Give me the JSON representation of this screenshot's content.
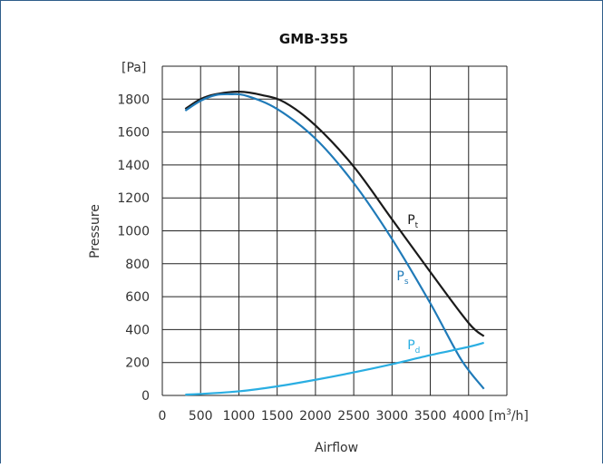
{
  "chart_data": {
    "type": "line",
    "title": "GMB-355",
    "xlabel": "Airflow",
    "ylabel": "Pressure",
    "x_unit_base": "[m",
    "x_unit_sup": "3",
    "x_unit_end": "/h]",
    "y_unit": "[Pa]",
    "xlim": [
      0,
      4500
    ],
    "ylim": [
      0,
      2000
    ],
    "x_ticks": [
      0,
      500,
      1000,
      1500,
      2000,
      2500,
      3000,
      3500,
      4000
    ],
    "x_tick_labels": [
      "0",
      "500",
      "1000",
      "1500",
      "2000",
      "2500",
      "3000",
      "3500",
      "4000"
    ],
    "y_ticks": [
      0,
      200,
      400,
      600,
      800,
      1000,
      1200,
      1400,
      1600,
      1800
    ],
    "y_tick_labels": [
      "0",
      "200",
      "400",
      "600",
      "800",
      "1000",
      "1200",
      "1400",
      "1600",
      "1800"
    ],
    "grid": true,
    "series": [
      {
        "name_main": "P",
        "name_sub": "t",
        "color": "#1a1a1a",
        "label_at": [
          3200,
          1040
        ],
        "points": [
          [
            300,
            1740
          ],
          [
            500,
            1800
          ],
          [
            700,
            1830
          ],
          [
            1000,
            1845
          ],
          [
            1300,
            1825
          ],
          [
            1600,
            1780
          ],
          [
            2000,
            1640
          ],
          [
            2500,
            1390
          ],
          [
            3000,
            1070
          ],
          [
            3500,
            750
          ],
          [
            4000,
            440
          ],
          [
            4200,
            360
          ]
        ]
      },
      {
        "name_main": "P",
        "name_sub": "s",
        "color": "#1f7ab8",
        "label_at": [
          3060,
          700
        ],
        "points": [
          [
            300,
            1730
          ],
          [
            500,
            1790
          ],
          [
            700,
            1825
          ],
          [
            900,
            1830
          ],
          [
            1100,
            1820
          ],
          [
            1500,
            1740
          ],
          [
            2000,
            1560
          ],
          [
            2500,
            1290
          ],
          [
            3000,
            950
          ],
          [
            3500,
            560
          ],
          [
            3900,
            220
          ],
          [
            4200,
            40
          ]
        ]
      },
      {
        "name_main": "P",
        "name_sub": "d",
        "color": "#2aaee2",
        "label_at": [
          3200,
          280
        ],
        "points": [
          [
            300,
            5
          ],
          [
            500,
            9
          ],
          [
            1000,
            25
          ],
          [
            1500,
            55
          ],
          [
            2000,
            95
          ],
          [
            2500,
            140
          ],
          [
            3000,
            190
          ],
          [
            3500,
            245
          ],
          [
            4000,
            295
          ],
          [
            4200,
            320
          ]
        ]
      }
    ]
  }
}
